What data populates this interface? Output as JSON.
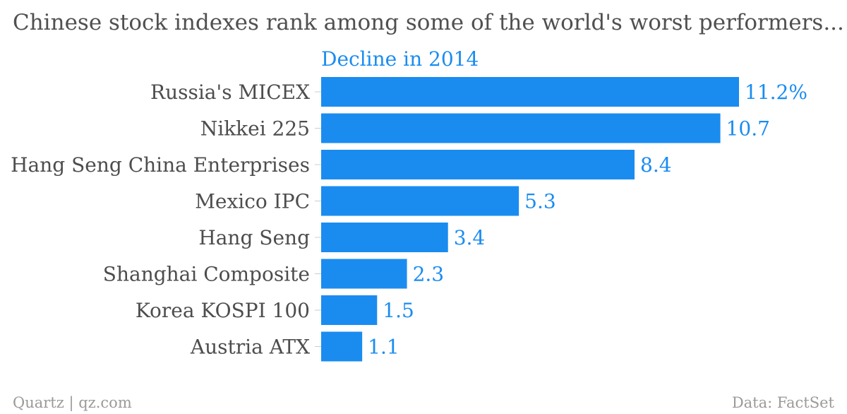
{
  "title": "Chinese stock indexes rank among some of the world's worst performers...",
  "footer": {
    "credit": "Quartz | qz.com",
    "source": "Data: FactSet"
  },
  "chart_data": {
    "type": "bar",
    "orientation": "horizontal",
    "categories": [
      "Russia's MICEX",
      "Nikkei 225",
      "Hang Seng China Enterprises",
      "Mexico IPC",
      "Hang Seng",
      "Shanghai Composite",
      "Korea KOSPI 100",
      "Austria ATX"
    ],
    "series": [
      {
        "name": "Decline in 2014",
        "values": [
          11.2,
          10.7,
          8.4,
          5.3,
          3.4,
          2.3,
          1.5,
          1.1
        ]
      }
    ],
    "value_labels": [
      "11.2%",
      "10.7",
      "8.4",
      "5.3",
      "3.4",
      "2.3",
      "1.5",
      "1.1"
    ],
    "xlim": [
      0,
      11.2
    ],
    "grid": false,
    "colors": {
      "bar": "#1a8cf0",
      "label": "#1a8cf0",
      "category": "#4d4d4d"
    }
  }
}
